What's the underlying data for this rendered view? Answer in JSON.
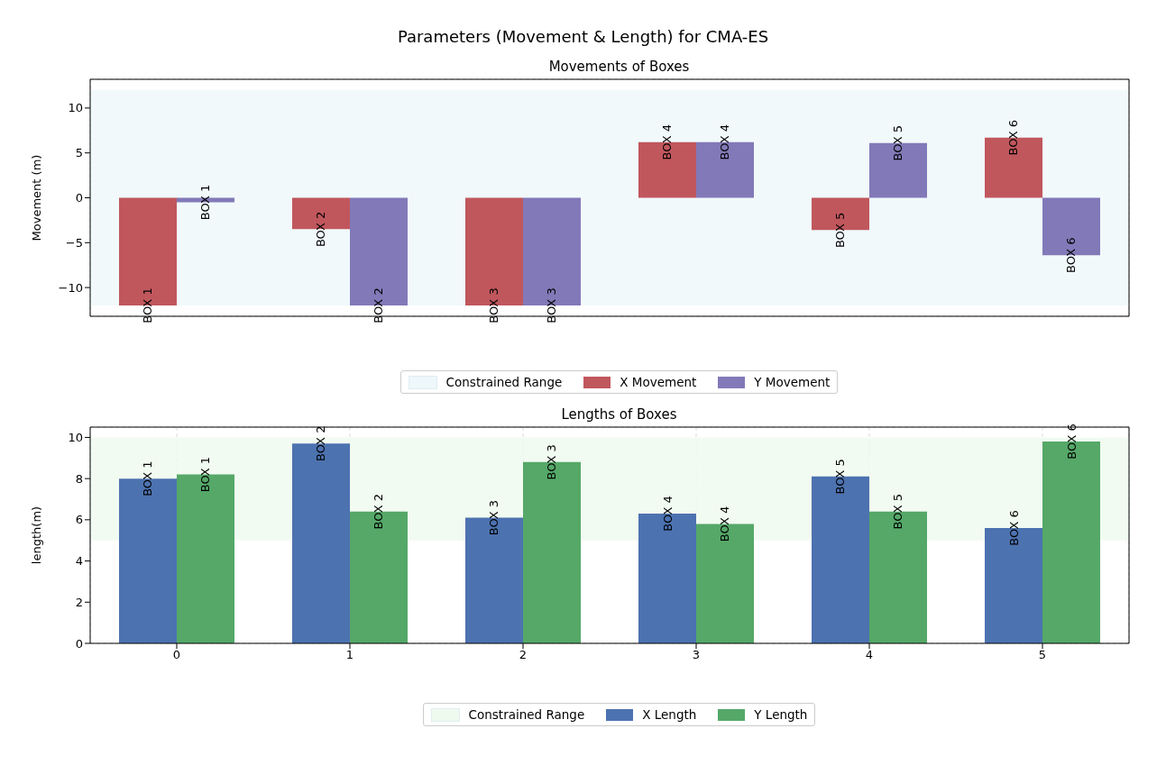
{
  "chart_data": [
    {
      "type": "bar",
      "title": "Parameters (Movement & Length) for CMA-ES",
      "subtitle": "Movements of Boxes",
      "ylabel": "Movement (m)",
      "categories": [
        "0",
        "1",
        "2",
        "3",
        "4",
        "5"
      ],
      "tick_labels": "y",
      "ylim": [
        -13.2,
        13.2
      ],
      "yticks": [
        -10,
        -5,
        0,
        5,
        10
      ],
      "grid": true,
      "legend": "bottom",
      "bands": [
        {
          "axis": "y",
          "from": -12,
          "to": 12,
          "label": "Constrained Range",
          "color": "#eef7fa"
        }
      ],
      "series": [
        {
          "name": "X Movement",
          "color": "#c0575d",
          "values": [
            -12,
            -3.5,
            -12,
            6.2,
            -3.6,
            6.7
          ],
          "value_labels": [
            "BOX 1",
            "BOX 2",
            "BOX 3",
            "BOX 4",
            "BOX 5",
            "BOX 6"
          ]
        },
        {
          "name": "Y Movement",
          "color": "#8279b8",
          "values": [
            -0.5,
            -12,
            -12,
            6.2,
            6.1,
            -6.4
          ],
          "value_labels": [
            "BOX 1",
            "BOX 2",
            "BOX 3",
            "BOX 4",
            "BOX 5",
            "BOX 6"
          ]
        }
      ]
    },
    {
      "type": "bar",
      "subtitle": "Lengths of Boxes",
      "ylabel": "length(m)",
      "categories": [
        "0",
        "1",
        "2",
        "3",
        "4",
        "5"
      ],
      "ylim": [
        0,
        10.5
      ],
      "yticks": [
        0,
        2,
        4,
        6,
        8,
        10
      ],
      "grid": true,
      "legend": "bottom",
      "bands": [
        {
          "axis": "y",
          "from": 5,
          "to": 10,
          "label": "Constrained Range",
          "color": "#eefaee"
        }
      ],
      "series": [
        {
          "name": "X Length",
          "color": "#4c72b0",
          "values": [
            8.0,
            9.7,
            6.1,
            6.3,
            8.1,
            5.6
          ],
          "value_labels": [
            "BOX 1",
            "BOX 2",
            "BOX 3",
            "BOX 4",
            "BOX 5",
            "BOX 6"
          ]
        },
        {
          "name": "Y Length",
          "color": "#55a868",
          "values": [
            8.2,
            6.4,
            8.8,
            5.8,
            6.4,
            9.8
          ],
          "value_labels": [
            "BOX 1",
            "BOX 2",
            "BOX 3",
            "BOX 4",
            "BOX 5",
            "BOX 6"
          ]
        }
      ]
    }
  ]
}
